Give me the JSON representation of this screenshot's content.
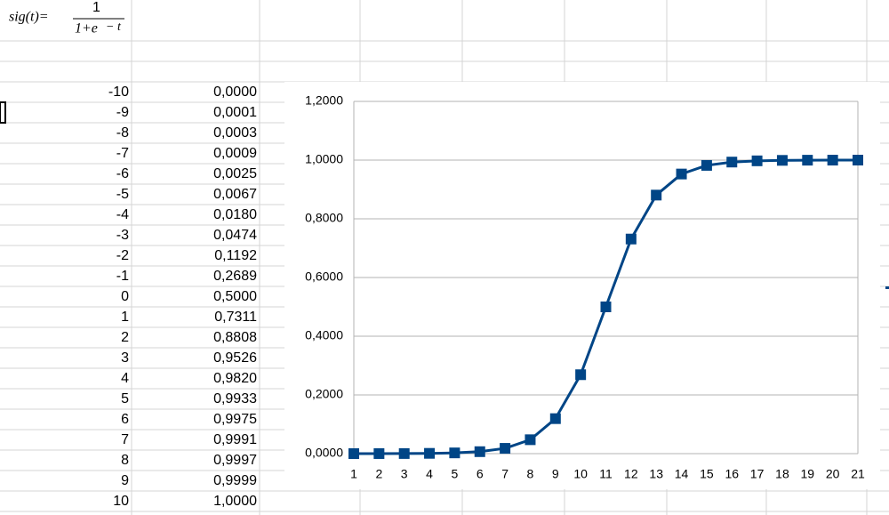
{
  "formula": {
    "lhs": "sig(t)=",
    "numerator": "1",
    "denominator": "1+e",
    "exponent": "− t"
  },
  "table": {
    "rows": [
      [
        "-10",
        "0,0000"
      ],
      [
        "-9",
        "0,0001"
      ],
      [
        "-8",
        "0,0003"
      ],
      [
        "-7",
        "0,0009"
      ],
      [
        "-6",
        "0,0025"
      ],
      [
        "-5",
        "0,0067"
      ],
      [
        "-4",
        "0,0180"
      ],
      [
        "-3",
        "0,0474"
      ],
      [
        "-2",
        "0,1192"
      ],
      [
        "-1",
        "0,2689"
      ],
      [
        "0",
        "0,5000"
      ],
      [
        "1",
        "0,7311"
      ],
      [
        "2",
        "0,8808"
      ],
      [
        "3",
        "0,9526"
      ],
      [
        "4",
        "0,9820"
      ],
      [
        "5",
        "0,9933"
      ],
      [
        "6",
        "0,9975"
      ],
      [
        "7",
        "0,9991"
      ],
      [
        "8",
        "0,9997"
      ],
      [
        "9",
        "0,9999"
      ],
      [
        "10",
        "1,0000"
      ]
    ]
  },
  "chart_data": {
    "type": "line",
    "categories": [
      "1",
      "2",
      "3",
      "4",
      "5",
      "6",
      "7",
      "8",
      "9",
      "10",
      "11",
      "12",
      "13",
      "14",
      "15",
      "16",
      "17",
      "18",
      "19",
      "20",
      "21"
    ],
    "series": [
      {
        "color": "#004586",
        "values": [
          0,
          0.0001,
          0.0003,
          0.0009,
          0.0025,
          0.0067,
          0.018,
          0.0474,
          0.1192,
          0.2689,
          0.5,
          0.7311,
          0.8808,
          0.9526,
          0.982,
          0.9933,
          0.9975,
          0.9991,
          0.9997,
          0.9999,
          1
        ]
      }
    ],
    "ylim": [
      0,
      1.2
    ],
    "yticks": [
      {
        "value": 0,
        "label": "0,0000"
      },
      {
        "value": 0.2,
        "label": "0,2000"
      },
      {
        "value": 0.4,
        "label": "0,4000"
      },
      {
        "value": 0.6,
        "label": "0,6000"
      },
      {
        "value": 0.8,
        "label": "0,8000"
      },
      {
        "value": 1,
        "label": "1,0000"
      },
      {
        "value": 1.2,
        "label": "1,2000"
      }
    ],
    "grid": true
  }
}
